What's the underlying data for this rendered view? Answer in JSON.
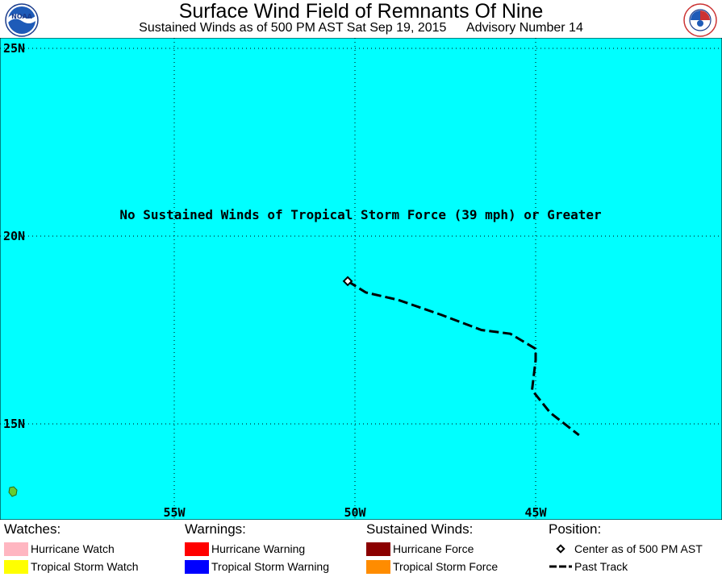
{
  "header": {
    "title": "Surface Wind Field of Remnants Of Nine",
    "subtitle_time": "Sustained Winds as of 500 PM AST Sat Sep 19, 2015",
    "subtitle_advisory": "Advisory Number 14"
  },
  "logos": {
    "left": "NOAA",
    "right": "NATIONAL WEATHER SERVICE"
  },
  "map": {
    "ocean_color": "#00ffff",
    "land_color": "#66cc33",
    "message": "No Sustained Winds of Tropical Storm Force (39 mph) or Greater",
    "lat_labels": [
      "25N",
      "20N",
      "15N"
    ],
    "lon_labels": [
      "55W",
      "50W",
      "45W"
    ],
    "center": {
      "lat": 18.8,
      "lon": -50.2
    },
    "past_track": [
      {
        "lat": 18.8,
        "lon": -50.2
      },
      {
        "lat": 18.5,
        "lon": -49.7
      },
      {
        "lat": 18.3,
        "lon": -48.8
      },
      {
        "lat": 17.9,
        "lon": -47.6
      },
      {
        "lat": 17.5,
        "lon": -46.5
      },
      {
        "lat": 17.4,
        "lon": -45.7
      },
      {
        "lat": 17.0,
        "lon": -45.0
      },
      {
        "lat": 16.7,
        "lon": -45.0
      },
      {
        "lat": 15.9,
        "lon": -45.1
      },
      {
        "lat": 15.3,
        "lon": -44.6
      },
      {
        "lat": 14.7,
        "lon": -43.8
      }
    ]
  },
  "legend": {
    "watches": {
      "heading": "Watches:",
      "items": [
        {
          "label": "Hurricane Watch",
          "color": "#ffb6c1"
        },
        {
          "label": "Tropical Storm Watch",
          "color": "#ffff00"
        }
      ]
    },
    "warnings": {
      "heading": "Warnings:",
      "items": [
        {
          "label": "Hurricane Warning",
          "color": "#ff0000"
        },
        {
          "label": "Tropical Storm Warning",
          "color": "#0000ff"
        }
      ]
    },
    "winds": {
      "heading": "Sustained Winds:",
      "items": [
        {
          "label": "Hurricane Force",
          "color": "#8b0000"
        },
        {
          "label": "Tropical Storm Force",
          "color": "#ff8c00"
        }
      ]
    },
    "position": {
      "heading": "Position:",
      "center_label": "Center as of 500 PM AST",
      "track_label": "Past Track"
    }
  }
}
